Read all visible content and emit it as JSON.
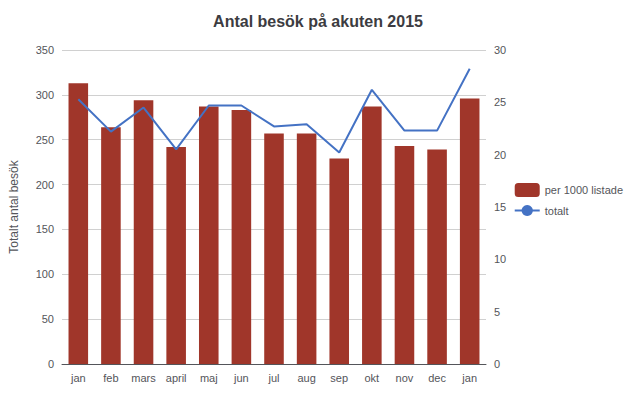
{
  "chart_data": {
    "type": "bar",
    "title": "Antal besök på akuten 2015",
    "ylabel": "Totalt antal besök",
    "categories": [
      "jan",
      "feb",
      "mars",
      "april",
      "maj",
      "jun",
      "jul",
      "aug",
      "sep",
      "okt",
      "nov",
      "dec",
      "jan"
    ],
    "series": [
      {
        "name": "per 1000 listade",
        "type": "bar",
        "color": "#A0362A",
        "values": [
          313,
          264,
          294,
          242,
          287,
          283,
          257,
          257,
          229,
          287,
          243,
          239,
          296
        ]
      },
      {
        "name": "totalt",
        "type": "line",
        "color": "#4472C4",
        "axis": "y2",
        "values": [
          25.3,
          22.2,
          24.5,
          20.5,
          24.7,
          24.7,
          22.7,
          22.9,
          20.2,
          26.2,
          22.3,
          22.3,
          28.2
        ]
      }
    ],
    "ylim": [
      0,
      350
    ],
    "yticks": [
      0,
      50,
      100,
      150,
      200,
      250,
      300,
      350
    ],
    "y2lim": [
      0,
      30
    ],
    "y2ticks": [
      0,
      5,
      10,
      15,
      20,
      25,
      30
    ],
    "grid": true,
    "legend": "right"
  }
}
